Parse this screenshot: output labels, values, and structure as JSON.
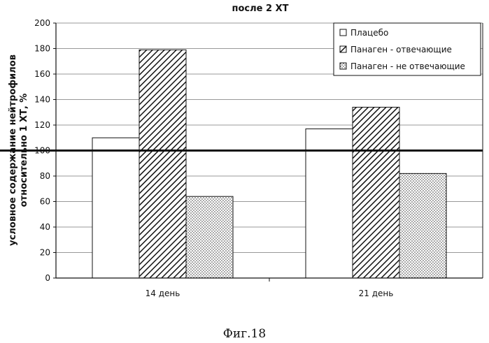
{
  "chart_data": {
    "type": "bar",
    "title": "после 2 ХТ",
    "ylabel_line1": "условное содержание нейтрофилов",
    "ylabel_line2": "относительно 1 ХТ, %",
    "xlabel": "",
    "categories": [
      "14 день",
      "21 день"
    ],
    "ylim": [
      0,
      200
    ],
    "yticks": [
      0,
      20,
      40,
      60,
      80,
      100,
      120,
      140,
      160,
      180,
      200
    ],
    "reference_line": 100,
    "grid": true,
    "legend_position": "top-right",
    "series": [
      {
        "name": "Плацебо",
        "values": [
          110,
          117
        ],
        "pattern": "blank"
      },
      {
        "name": "Панаген - отвечающие",
        "values": [
          179,
          134
        ],
        "pattern": "diagonal"
      },
      {
        "name": "Панаген - не отвечающие",
        "values": [
          64,
          82
        ],
        "pattern": "dots"
      }
    ]
  },
  "figure_caption": "Фиг.18"
}
